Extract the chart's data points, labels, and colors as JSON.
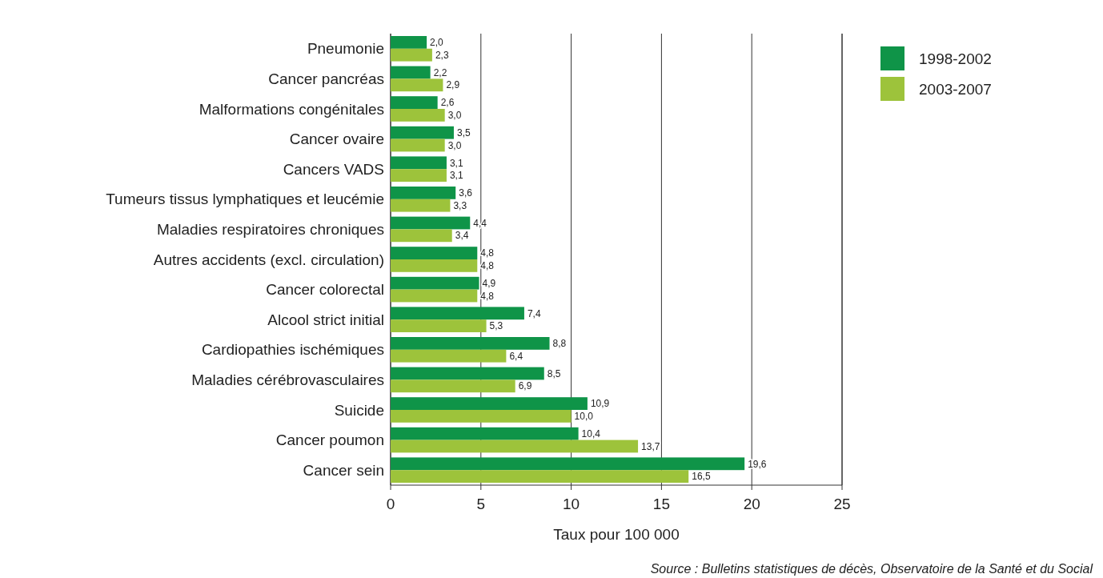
{
  "chart_data": {
    "type": "bar",
    "orientation": "horizontal",
    "xlabel": "Taux pour 100 000",
    "categories": [
      "Pneumonie",
      "Cancer pancréas",
      "Malformations congénitales",
      "Cancer ovaire",
      "Cancers VADS",
      "Tumeurs tissus lymphatiques et leucémie",
      "Maladies respiratoires chroniques",
      "Autres accidents (excl. circulation)",
      "Cancer colorectal",
      "Alcool strict initial",
      "Cardiopathies ischémiques",
      "Maladies cérébrovasculaires",
      "Suicide",
      "Cancer poumon",
      "Cancer sein"
    ],
    "series": [
      {
        "name": "1998-2002",
        "color": "#0f9448",
        "values": [
          2.0,
          2.2,
          2.6,
          3.5,
          3.1,
          3.6,
          4.4,
          4.8,
          4.9,
          7.4,
          8.8,
          8.5,
          10.9,
          10.4,
          19.6
        ],
        "value_labels": [
          "2,0",
          "2,2",
          "2,6",
          "3,5",
          "3,1",
          "3,6",
          "4,4",
          "4,8",
          "4,9",
          "7,4",
          "8,8",
          "8,5",
          "10,9",
          "10,4",
          "19,6"
        ]
      },
      {
        "name": "2003-2007",
        "color": "#9dc33b",
        "values": [
          2.3,
          2.9,
          3.0,
          3.0,
          3.1,
          3.3,
          3.4,
          4.8,
          4.8,
          5.3,
          6.4,
          6.9,
          10.0,
          13.7,
          16.5
        ],
        "value_labels": [
          "2,3",
          "2,9",
          "3,0",
          "3,0",
          "3,1",
          "3,3",
          "3,4",
          "4,8",
          "4,8",
          "5,3",
          "6,4",
          "6,9",
          "10,0",
          "13,7",
          "16,5"
        ]
      }
    ],
    "xlim": [
      0,
      25
    ],
    "xticks": [
      0,
      5,
      10,
      15,
      20,
      25
    ],
    "grid": "x",
    "legend": "top right",
    "annotations": [
      "Source : Bulletins statistiques de décès, Observatoire de la Santé et du Social"
    ]
  }
}
